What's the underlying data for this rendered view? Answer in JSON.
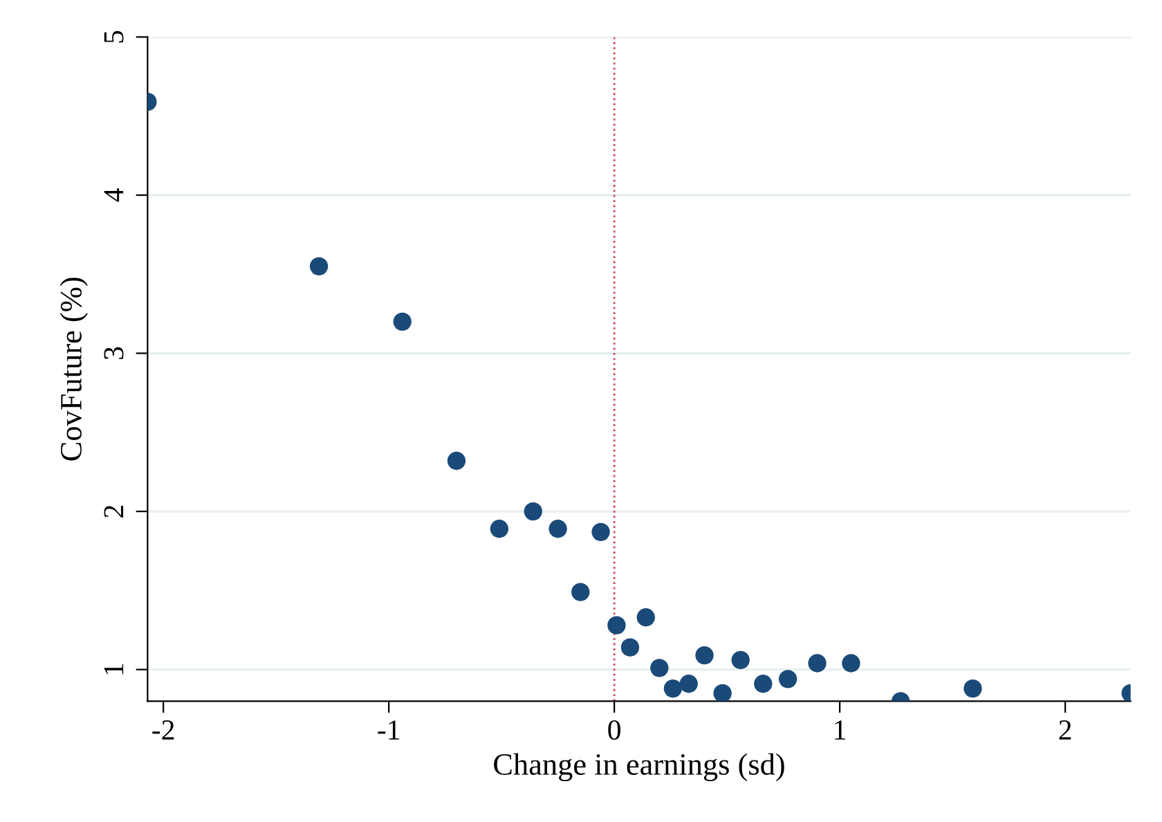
{
  "chart_data": {
    "type": "scatter",
    "xlabel": "Change in earnings (sd)",
    "ylabel": "CovFuture (%)",
    "x": [
      -2.07,
      -1.31,
      -0.94,
      -0.7,
      -0.51,
      -0.36,
      -0.25,
      -0.15,
      -0.06,
      0.01,
      0.07,
      0.14,
      0.2,
      0.26,
      0.33,
      0.4,
      0.48,
      0.56,
      0.66,
      0.77,
      0.9,
      1.05,
      1.27,
      1.59,
      2.29
    ],
    "values": [
      4.59,
      3.55,
      3.2,
      2.32,
      1.89,
      2.0,
      1.89,
      1.49,
      1.87,
      1.28,
      1.14,
      1.33,
      1.01,
      0.88,
      0.91,
      1.09,
      0.85,
      1.06,
      0.91,
      0.94,
      1.04,
      1.04,
      0.8,
      0.88,
      0.85
    ],
    "color": "#1a4a78",
    "marker": "circle",
    "xlim": [
      -2.07,
      2.29
    ],
    "ylim": [
      0.8,
      5
    ],
    "xticks": [
      -2,
      -1,
      0,
      1,
      2
    ],
    "yticks": [
      1,
      2,
      3,
      4,
      5
    ],
    "grid": "y",
    "ref_lines": [
      {
        "axis": "x",
        "value": 0,
        "label": null,
        "color": "#d0405a",
        "line_style": "dotted"
      }
    ]
  }
}
